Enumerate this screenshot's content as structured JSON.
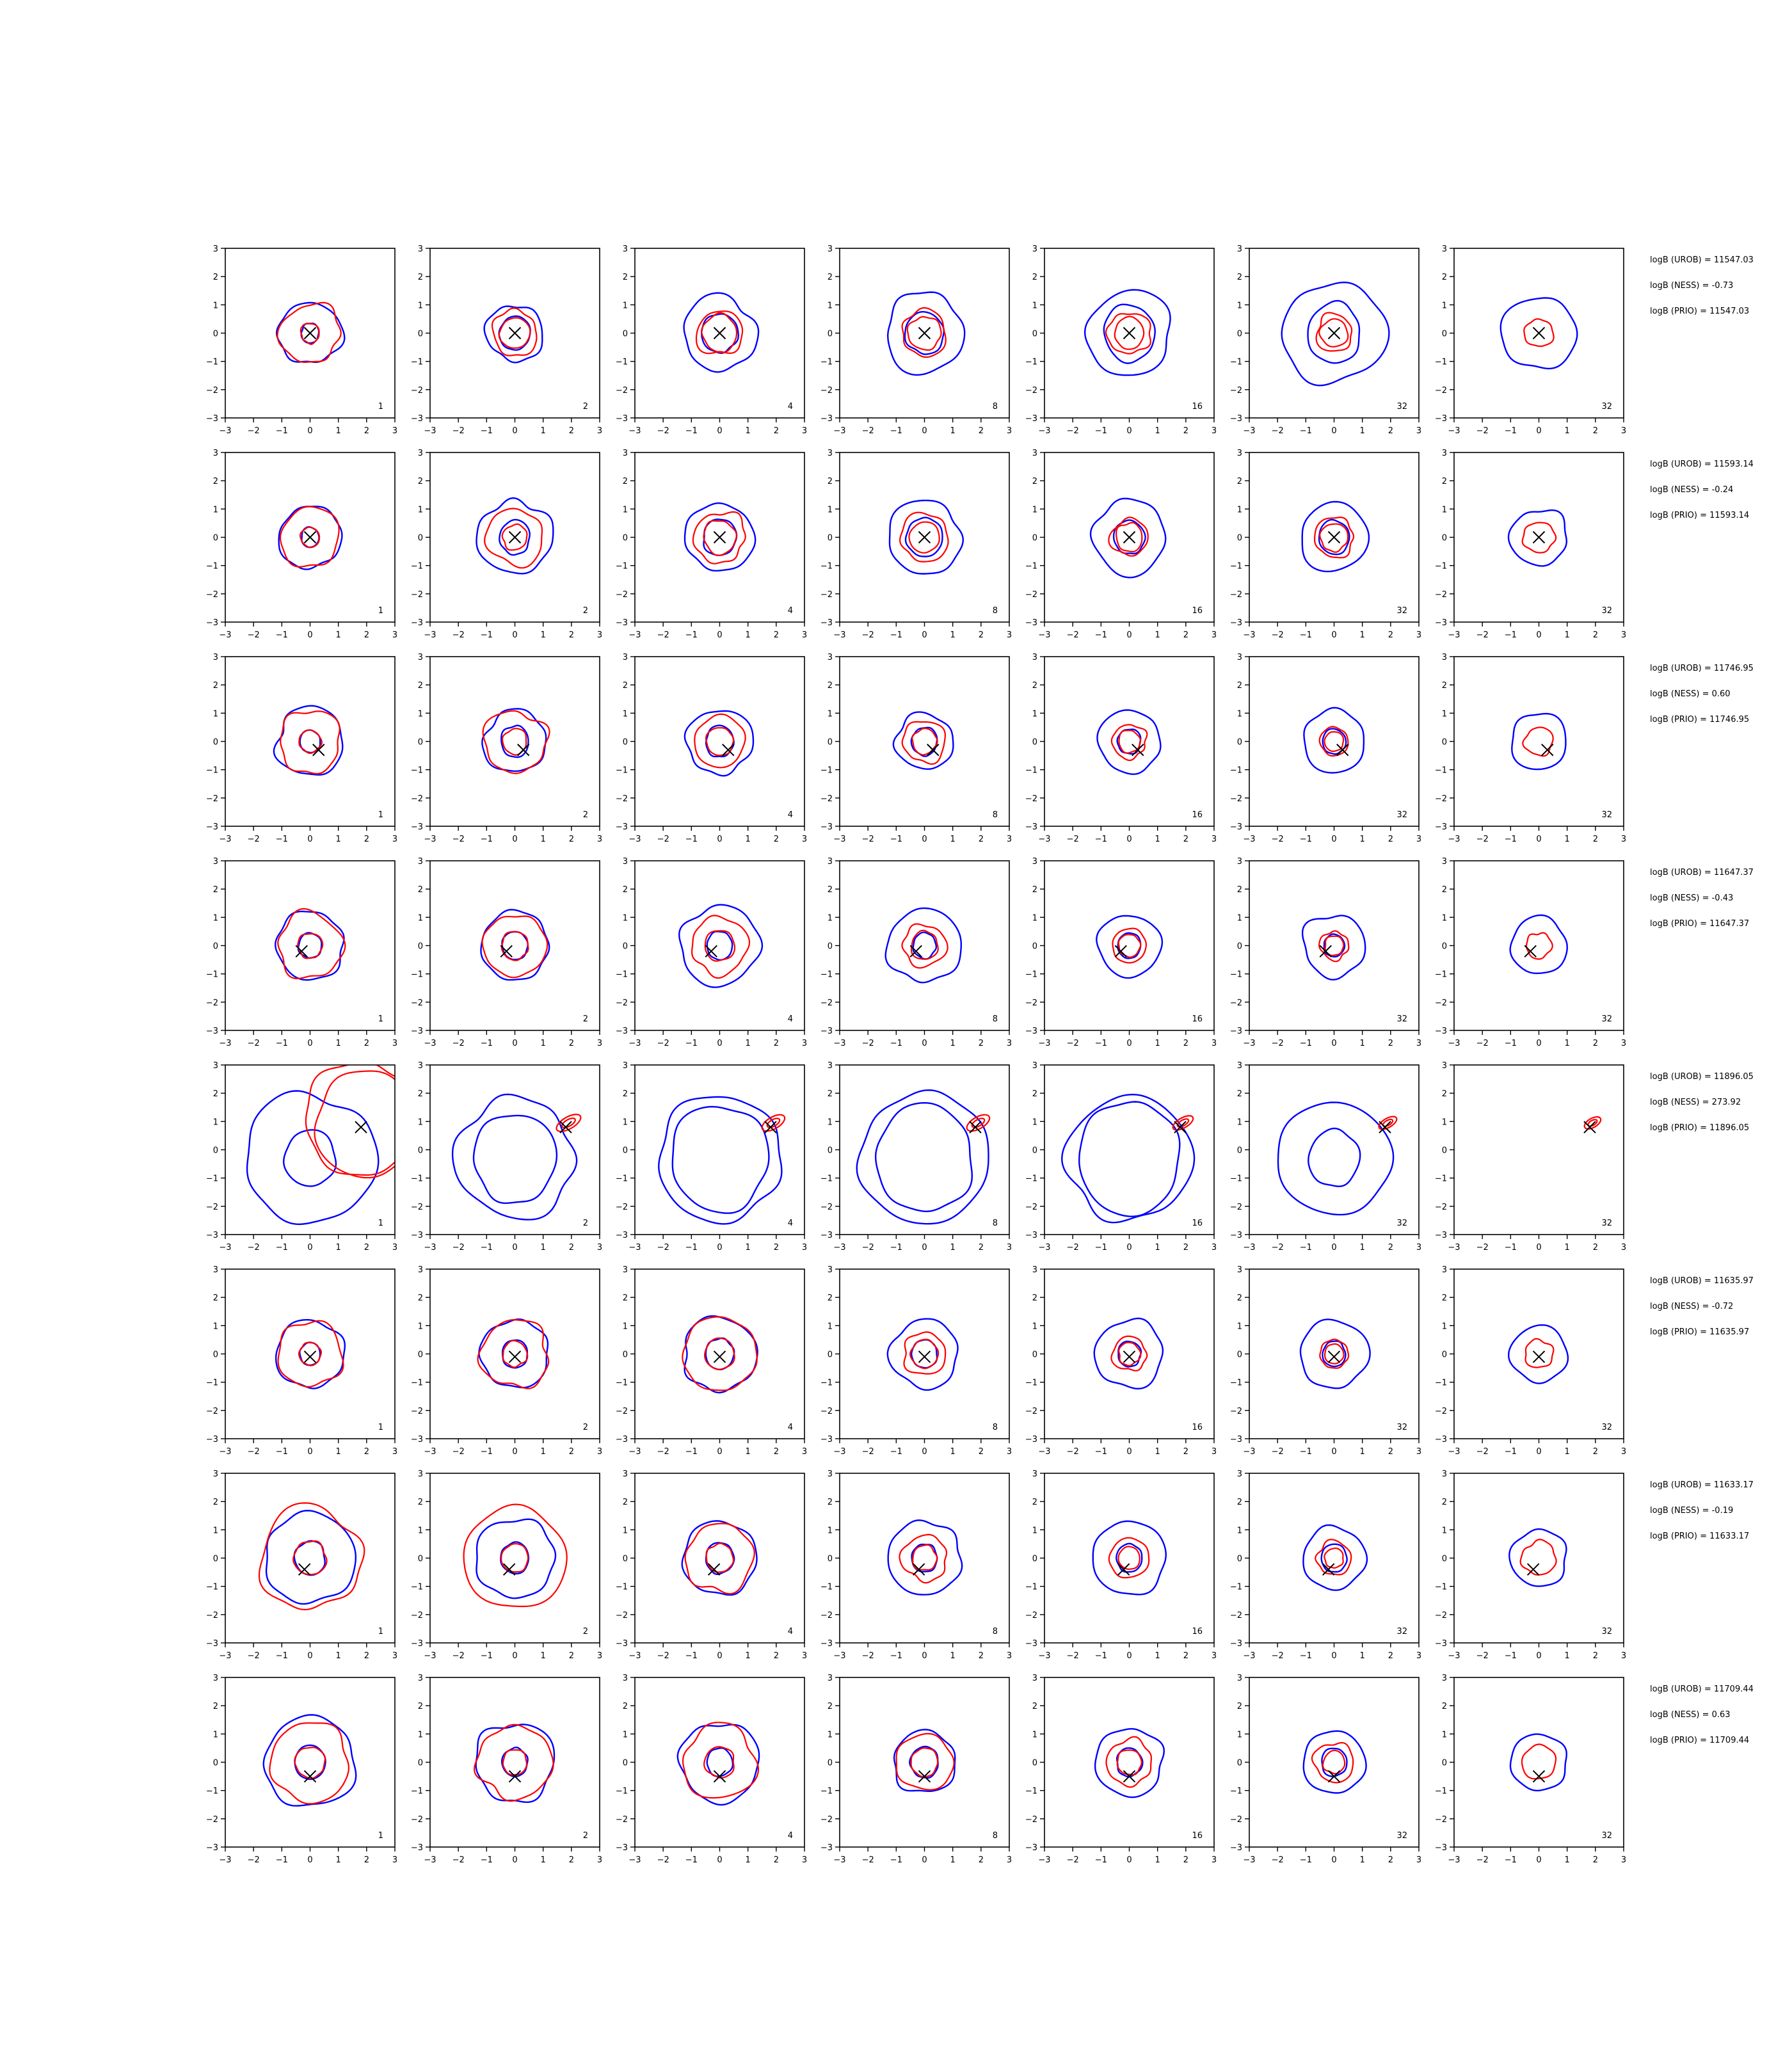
{
  "chart_data": {
    "type": "contour_grid",
    "title": "",
    "xlim": [
      -3,
      3
    ],
    "ylim": [
      -3,
      3
    ],
    "ticks": [
      "−3",
      "−2",
      "−1",
      "0",
      "1",
      "2",
      "3"
    ],
    "column_labels": [
      "1",
      "2",
      "4",
      "8",
      "16",
      "32",
      "32"
    ],
    "grid": false,
    "colors": {
      "blue_contours": "#0000ff",
      "red_contours": "#ff0000",
      "marker": "#000000"
    },
    "rows": [
      {
        "marker": [
          0.0,
          0.0
        ],
        "annotations": [
          "logB (UROB) = 11547.03",
          "logB (NESS) = -0.73",
          "logB (PRIO) = 11547.03"
        ],
        "blue": [
          [
            0.35,
            1.1
          ],
          [
            0.6,
            1.0
          ],
          [
            0.7,
            1.3
          ],
          [
            0.75,
            1.4
          ],
          [
            1.0,
            1.5
          ],
          [
            1.05,
            1.8
          ],
          [
            0.0,
            1.3
          ]
        ],
        "red": [
          [
            0.35,
            1.05
          ],
          [
            0.55,
            0.8
          ],
          [
            0.65,
            0.8
          ],
          [
            0.6,
            0.8
          ],
          [
            0.55,
            0.75
          ],
          [
            0.5,
            0.65
          ],
          [
            0.0,
            0.5
          ]
        ],
        "blueCenter": [
          0,
          0
        ],
        "redCenter": [
          0,
          0
        ],
        "redElong": null
      },
      {
        "marker": [
          0.0,
          0.0
        ],
        "annotations": [
          "logB (UROB) = 11593.14",
          "logB (NESS) = -0.24",
          "logB (PRIO) = 11593.14"
        ],
        "blue": [
          [
            0.35,
            1.1
          ],
          [
            0.6,
            1.3
          ],
          [
            0.65,
            1.2
          ],
          [
            0.7,
            1.3
          ],
          [
            0.6,
            1.3
          ],
          [
            0.6,
            1.2
          ],
          [
            0.0,
            1.0
          ]
        ],
        "red": [
          [
            0.35,
            1.05
          ],
          [
            0.45,
            1.0
          ],
          [
            0.6,
            0.9
          ],
          [
            0.55,
            0.85
          ],
          [
            0.5,
            0.65
          ],
          [
            0.5,
            0.7
          ],
          [
            0.0,
            0.55
          ]
        ],
        "blueCenter": [
          0,
          0
        ],
        "redCenter": [
          0,
          0
        ],
        "redElong": null
      },
      {
        "marker": [
          0.3,
          -0.3
        ],
        "annotations": [
          "logB (UROB) = 11746.95",
          "logB (NESS) = 0.60",
          "logB (PRIO) = 11746.95"
        ],
        "blue": [
          [
            0.4,
            1.2
          ],
          [
            0.55,
            1.1
          ],
          [
            0.55,
            1.15
          ],
          [
            0.5,
            1.0
          ],
          [
            0.45,
            1.1
          ],
          [
            0.45,
            1.1
          ],
          [
            0.0,
            1.0
          ]
        ],
        "red": [
          [
            0.4,
            1.1
          ],
          [
            0.45,
            1.1
          ],
          [
            0.5,
            0.9
          ],
          [
            0.45,
            0.75
          ],
          [
            0.4,
            0.6
          ],
          [
            0.35,
            0.5
          ],
          [
            0.0,
            0.5
          ]
        ],
        "blueCenter": [
          0,
          0
        ],
        "redCenter": [
          0,
          0
        ],
        "redElong": null
      },
      {
        "marker": [
          -0.3,
          -0.2
        ],
        "annotations": [
          "logB (UROB) = 11647.37",
          "logB (NESS) = -0.43",
          "logB (PRIO) = 11647.37"
        ],
        "blue": [
          [
            0.45,
            1.2
          ],
          [
            0.5,
            1.2
          ],
          [
            0.5,
            1.4
          ],
          [
            0.45,
            1.3
          ],
          [
            0.45,
            1.1
          ],
          [
            0.4,
            1.1
          ],
          [
            0.0,
            1.0
          ]
        ],
        "red": [
          [
            0.45,
            1.15
          ],
          [
            0.5,
            1.1
          ],
          [
            0.55,
            1.0
          ],
          [
            0.5,
            0.75
          ],
          [
            0.4,
            0.6
          ],
          [
            0.35,
            0.5
          ],
          [
            0.0,
            0.45
          ]
        ],
        "blueCenter": [
          0,
          0
        ],
        "redCenter": [
          0,
          0
        ],
        "redElong": null
      },
      {
        "marker": [
          1.8,
          0.8
        ],
        "annotations": [
          "logB (UROB) = 11896.05",
          "logB (NESS) = 273.92",
          "logB (PRIO) = 11896.05"
        ],
        "blue": [
          [
            1.0,
            2.3
          ],
          [
            1.6,
            2.1
          ],
          [
            1.9,
            2.2
          ],
          [
            1.9,
            2.3
          ],
          [
            2.0,
            2.2
          ],
          [
            1.0,
            2.0
          ],
          [
            0.0,
            0.0
          ]
        ],
        "red": [
          [
            1.9,
            2.0
          ],
          [
            0.3,
            0.1
          ],
          [
            0.28,
            0.1
          ],
          [
            0.28,
            0.1
          ],
          [
            0.25,
            0.08
          ],
          [
            0.22,
            0.07
          ],
          [
            0.2,
            0.07
          ]
        ],
        "blueCenter": [
          0,
          -0.3
        ],
        "redCenter": [
          1.8,
          0.9
        ],
        "redElong": null
      },
      {
        "marker": [
          0.0,
          -0.1
        ],
        "annotations": [
          "logB (UROB) = 11635.97",
          "logB (NESS) = -0.72",
          "logB (PRIO) = 11635.97"
        ],
        "blue": [
          [
            0.4,
            1.2
          ],
          [
            0.5,
            1.2
          ],
          [
            0.55,
            1.3
          ],
          [
            0.5,
            1.2
          ],
          [
            0.45,
            1.2
          ],
          [
            0.45,
            1.2
          ],
          [
            0.0,
            1.0
          ]
        ],
        "red": [
          [
            0.4,
            1.15
          ],
          [
            0.45,
            1.2
          ],
          [
            0.55,
            1.3
          ],
          [
            0.5,
            0.75
          ],
          [
            0.4,
            0.6
          ],
          [
            0.35,
            0.5
          ],
          [
            0.0,
            0.5
          ]
        ],
        "blueCenter": [
          0,
          0
        ],
        "redCenter": [
          0,
          0
        ],
        "redElong": null
      },
      {
        "marker": [
          -0.2,
          -0.4
        ],
        "annotations": [
          "logB (UROB) = 11633.17",
          "logB (NESS) = -0.19",
          "logB (PRIO) = 11633.17"
        ],
        "blue": [
          [
            0.6,
            1.6
          ],
          [
            0.55,
            1.4
          ],
          [
            0.55,
            1.3
          ],
          [
            0.5,
            1.3
          ],
          [
            0.5,
            1.3
          ],
          [
            0.5,
            1.1
          ],
          [
            0.0,
            1.0
          ]
        ],
        "red": [
          [
            0.6,
            1.8
          ],
          [
            0.5,
            1.8
          ],
          [
            0.5,
            1.2
          ],
          [
            0.45,
            0.8
          ],
          [
            0.4,
            0.7
          ],
          [
            0.35,
            0.6
          ],
          [
            0.0,
            0.6
          ]
        ],
        "blueCenter": [
          0,
          0
        ],
        "redCenter": [
          0,
          0
        ],
        "redElong": null
      },
      {
        "marker": [
          0.0,
          -0.5
        ],
        "annotations": [
          "logB (UROB) = 11709.44",
          "logB (NESS) = 0.63",
          "logB (PRIO) = 11709.44"
        ],
        "blue": [
          [
            0.6,
            1.6
          ],
          [
            0.5,
            1.4
          ],
          [
            0.5,
            1.4
          ],
          [
            0.55,
            1.1
          ],
          [
            0.5,
            1.2
          ],
          [
            0.5,
            1.1
          ],
          [
            0.0,
            1.0
          ]
        ],
        "red": [
          [
            0.55,
            1.4
          ],
          [
            0.45,
            1.3
          ],
          [
            0.55,
            1.3
          ],
          [
            0.5,
            1.0
          ],
          [
            0.45,
            0.8
          ],
          [
            0.4,
            0.7
          ],
          [
            0.0,
            0.6
          ]
        ],
        "blueCenter": [
          0,
          0
        ],
        "redCenter": [
          0,
          0
        ],
        "redElong": null
      }
    ]
  }
}
